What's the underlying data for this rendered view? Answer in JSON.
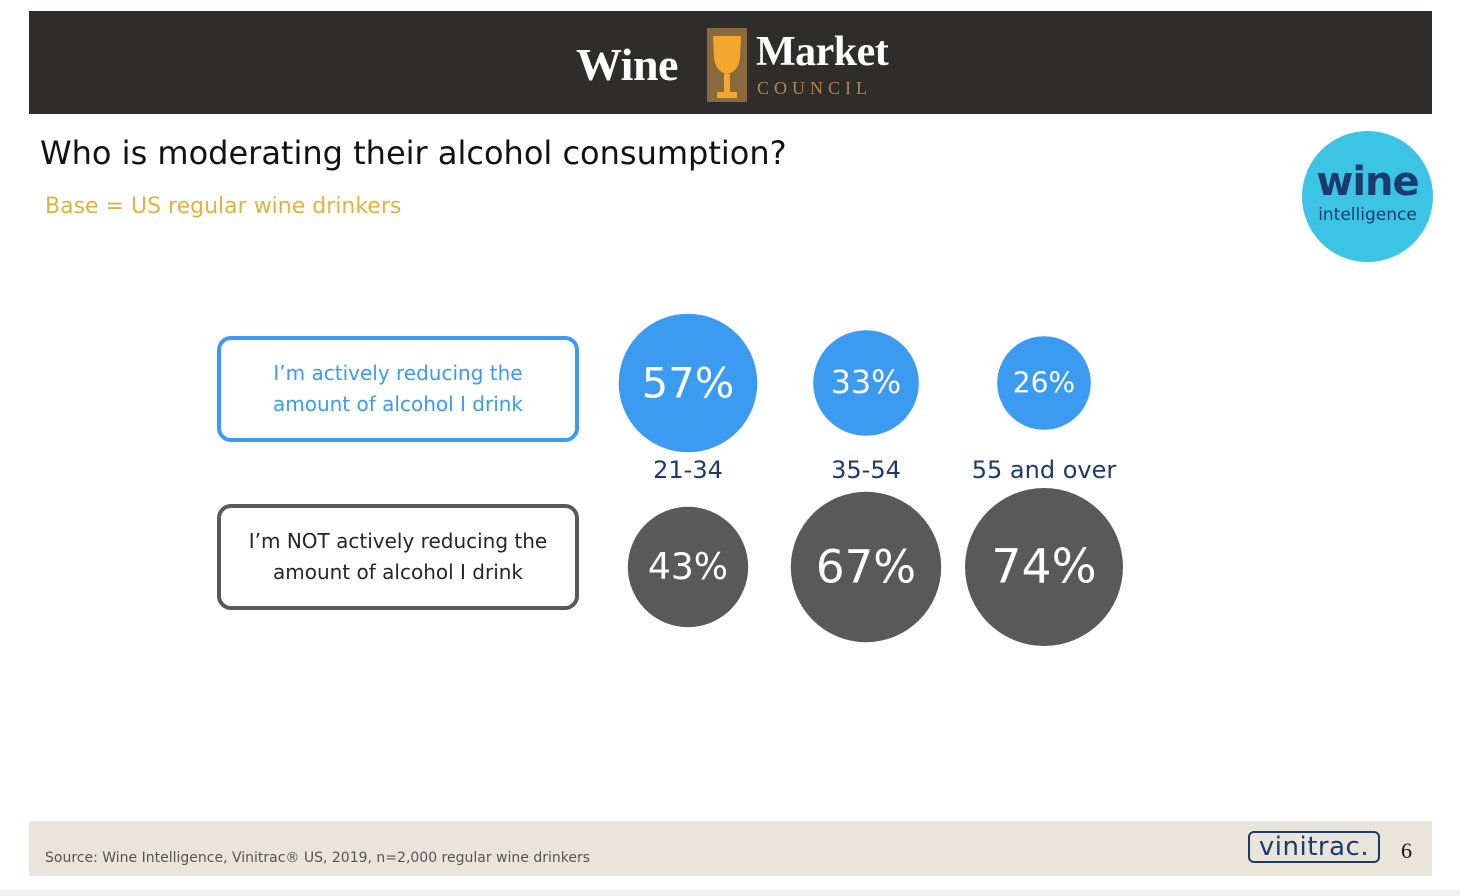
{
  "header": {
    "logo_wine": "Wine",
    "logo_market": "Market",
    "logo_council": "COUNCIL"
  },
  "title": "Who is moderating their alcohol consumption?",
  "subtitle": "Base = US regular wine drinkers",
  "badge": {
    "word": "wine",
    "sub": "intelligence"
  },
  "chart_data": {
    "type": "bubble",
    "categories": [
      "21-34",
      "35-54",
      "55 and over"
    ],
    "series": [
      {
        "name": "I’m actively reducing the amount of alcohol I drink",
        "values": [
          57,
          33,
          26
        ],
        "labels": [
          "57%",
          "33%",
          "26%"
        ],
        "color": "#3a9bf0"
      },
      {
        "name": "I’m NOT actively reducing the amount of alcohol I drink",
        "values": [
          43,
          67,
          74
        ],
        "labels": [
          "43%",
          "67%",
          "74%"
        ],
        "color": "#595959"
      }
    ],
    "category_label_color": "#1c3a6e",
    "unit": "%"
  },
  "footer": {
    "source": "Source: Wine Intelligence, Vinitrac® US, 2019, n=2,000 regular wine drinkers",
    "brand": "vinitrac.",
    "page": "6"
  }
}
